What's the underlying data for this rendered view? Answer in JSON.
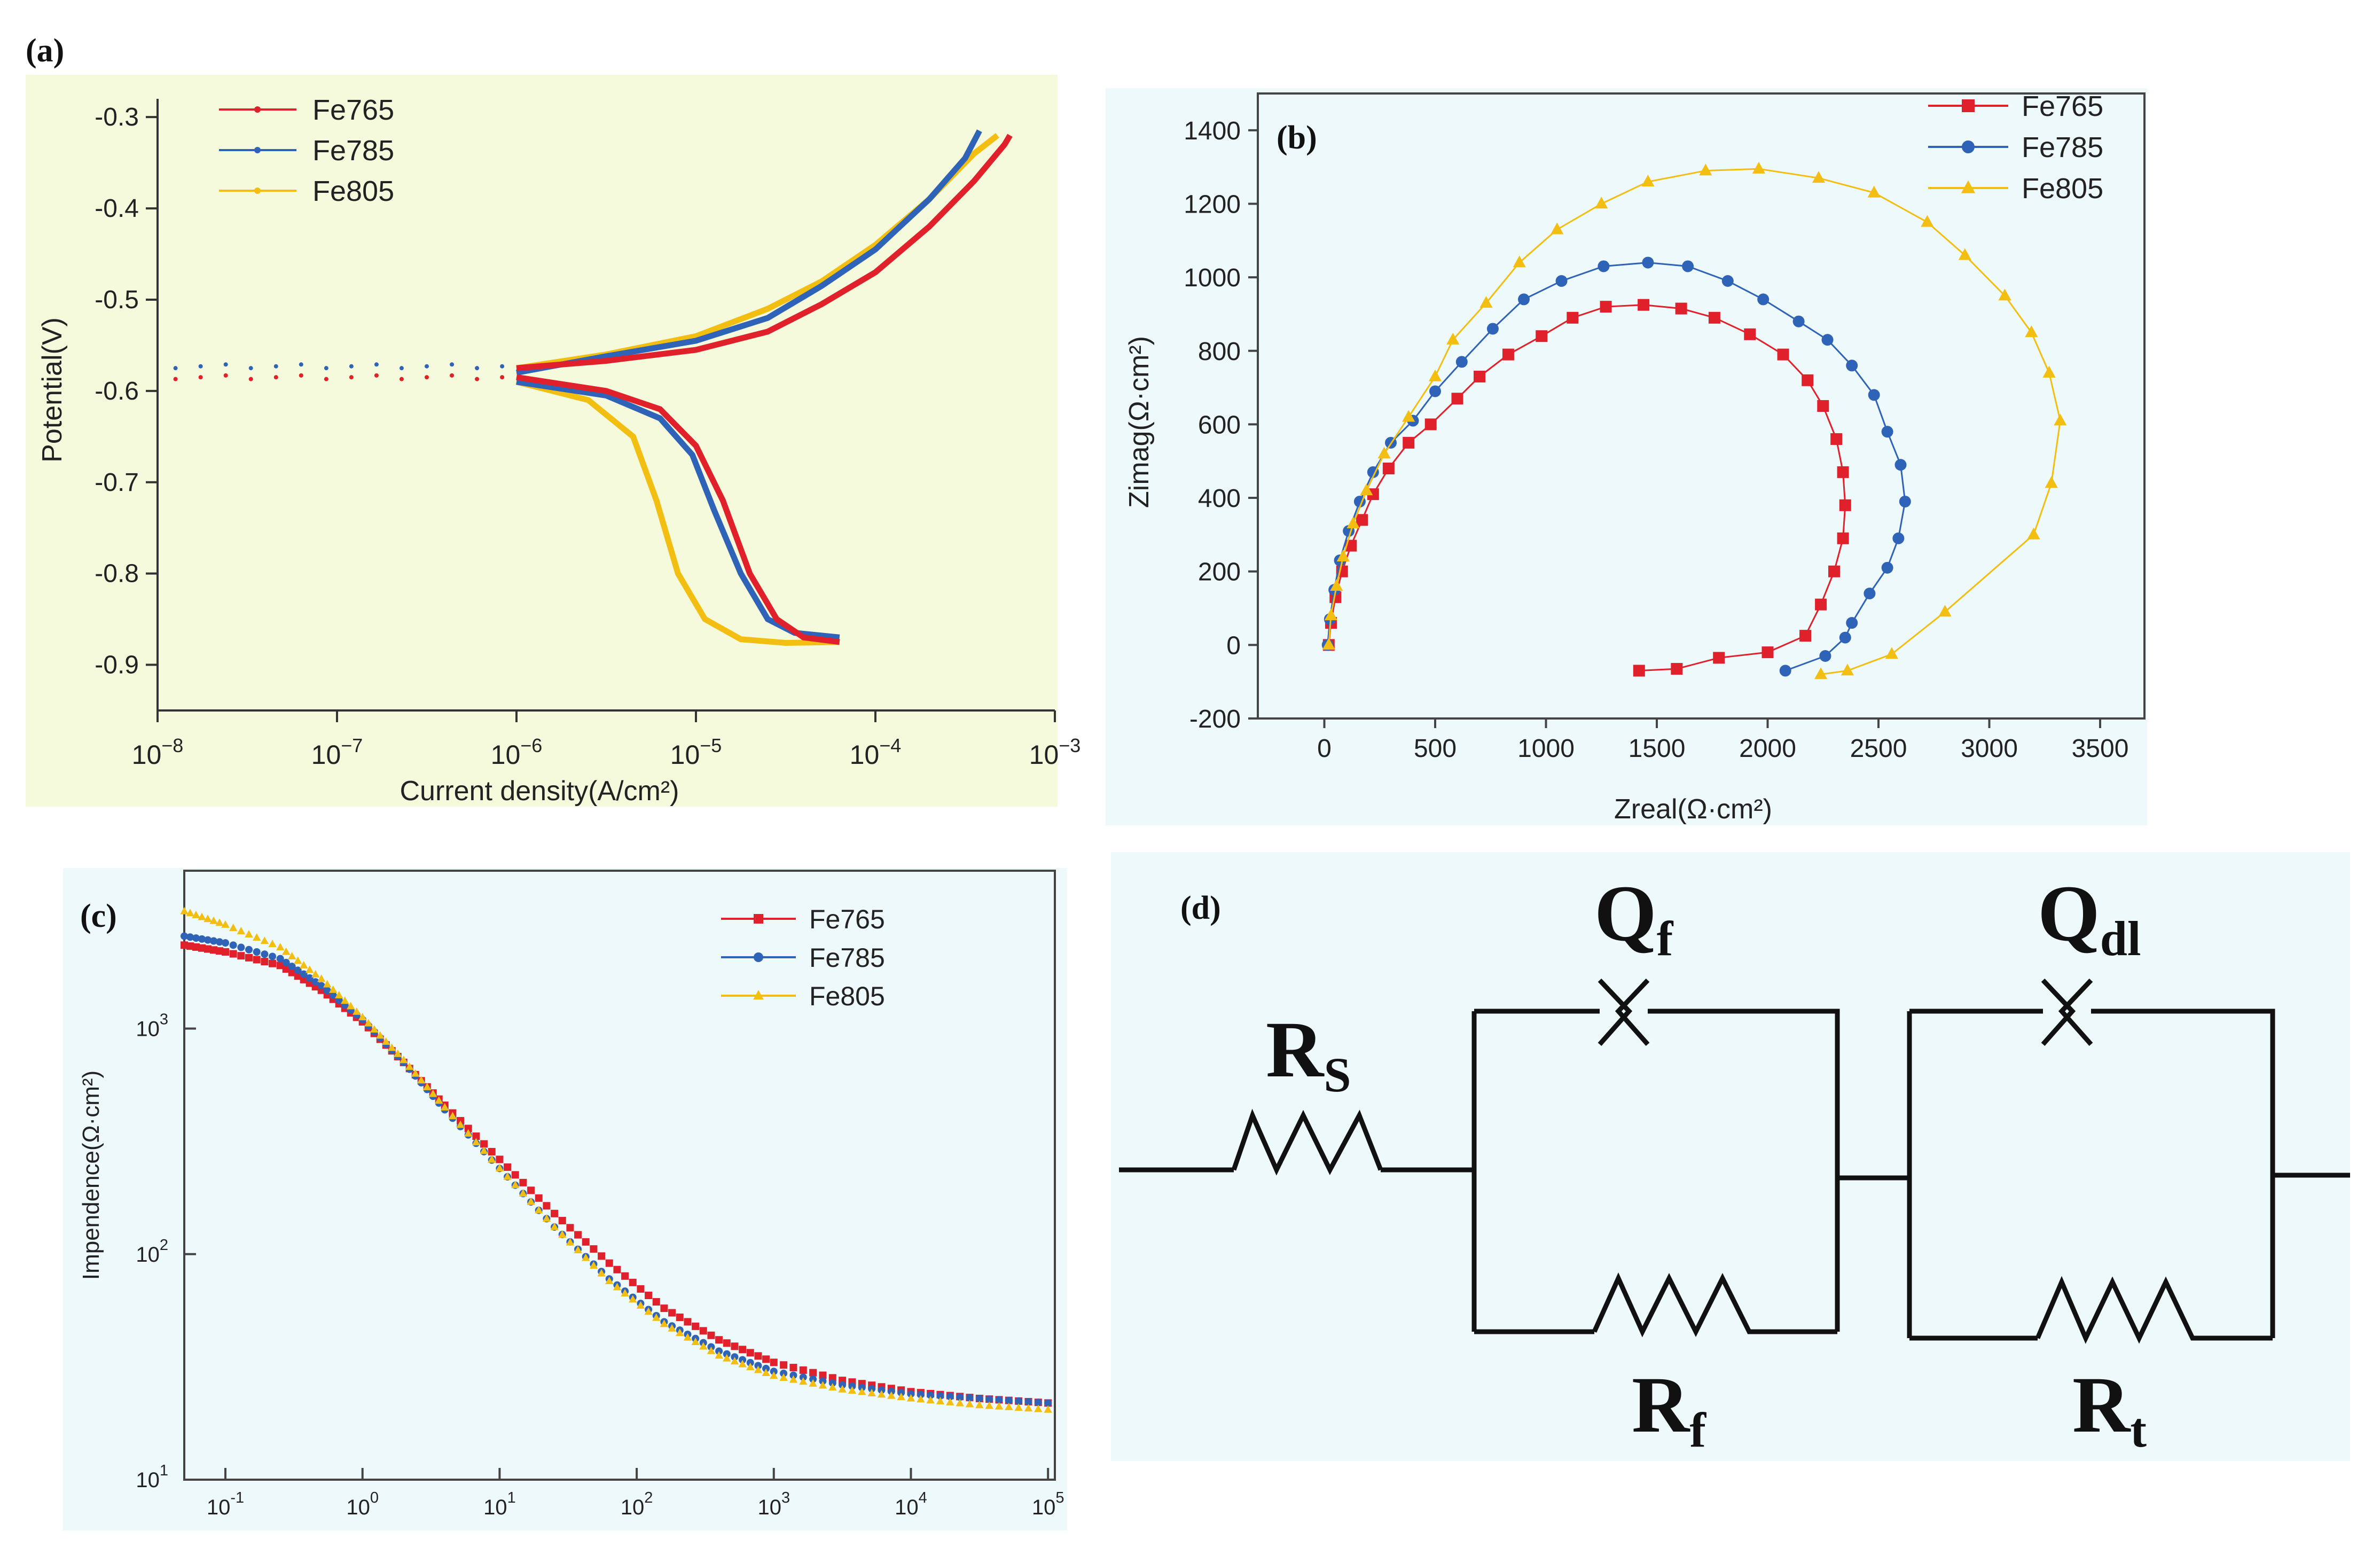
{
  "colors": {
    "Fe765": "#e0202a",
    "Fe785": "#2f63b8",
    "Fe805": "#f3be12",
    "panel_a_bg": "#f5fadc",
    "panel_b_bg": "#eef9fb",
    "panel_c_bg": "#eef9fb",
    "panel_d_bg": "#eef9fb"
  },
  "chart_data": [
    {
      "type": "line",
      "panel_label": "(a)",
      "xlabel": "Current density(A/cm²)",
      "ylabel": "Potential(V)",
      "x_scale": "log",
      "xlim_exp": [
        -8,
        -3
      ],
      "ylim": [
        -0.95,
        -0.28
      ],
      "x_tick_base": "10",
      "x_ticks": [
        {
          "exp": "−8",
          "v": -8
        },
        {
          "exp": "−7",
          "v": -7
        },
        {
          "exp": "−6",
          "v": -6
        },
        {
          "exp": "−5",
          "v": -5
        },
        {
          "exp": "−4",
          "v": -4
        },
        {
          "exp": "−3",
          "v": -3
        }
      ],
      "y_ticks": [
        "-0.3",
        "-0.4",
        "-0.5",
        "-0.6",
        "-0.7",
        "-0.8",
        "-0.9"
      ],
      "legend": "top-left",
      "series": [
        {
          "name": "Fe765",
          "points_exp_E": [
            [
              -6.0,
              -0.575
            ],
            [
              -5.5,
              -0.567
            ],
            [
              -5.0,
              -0.555
            ],
            [
              -4.6,
              -0.535
            ],
            [
              -4.3,
              -0.505
            ],
            [
              -4.0,
              -0.47
            ],
            [
              -3.7,
              -0.42
            ],
            [
              -3.45,
              -0.37
            ],
            [
              -3.28,
              -0.33
            ],
            [
              -3.25,
              -0.32
            ]
          ],
          "cathodic_exp_E": [
            [
              -6.0,
              -0.585
            ],
            [
              -5.5,
              -0.6
            ],
            [
              -5.2,
              -0.62
            ],
            [
              -5.0,
              -0.66
            ],
            [
              -4.85,
              -0.72
            ],
            [
              -4.7,
              -0.8
            ],
            [
              -4.55,
              -0.85
            ],
            [
              -4.4,
              -0.87
            ],
            [
              -4.2,
              -0.875
            ]
          ]
        },
        {
          "name": "Fe785",
          "points_exp_E": [
            [
              -6.0,
              -0.58
            ],
            [
              -5.5,
              -0.562
            ],
            [
              -5.0,
              -0.545
            ],
            [
              -4.6,
              -0.52
            ],
            [
              -4.3,
              -0.485
            ],
            [
              -4.0,
              -0.445
            ],
            [
              -3.7,
              -0.39
            ],
            [
              -3.5,
              -0.345
            ],
            [
              -3.42,
              -0.315
            ]
          ],
          "cathodic_exp_E": [
            [
              -6.0,
              -0.59
            ],
            [
              -5.5,
              -0.605
            ],
            [
              -5.2,
              -0.63
            ],
            [
              -5.02,
              -0.67
            ],
            [
              -4.9,
              -0.73
            ],
            [
              -4.75,
              -0.8
            ],
            [
              -4.6,
              -0.85
            ],
            [
              -4.45,
              -0.865
            ],
            [
              -4.2,
              -0.87
            ]
          ]
        },
        {
          "name": "Fe805",
          "points_exp_E": [
            [
              -6.0,
              -0.575
            ],
            [
              -5.5,
              -0.56
            ],
            [
              -5.0,
              -0.54
            ],
            [
              -4.6,
              -0.51
            ],
            [
              -4.3,
              -0.48
            ],
            [
              -4.0,
              -0.44
            ],
            [
              -3.7,
              -0.39
            ],
            [
              -3.45,
              -0.34
            ],
            [
              -3.32,
              -0.32
            ]
          ],
          "cathodic_exp_E": [
            [
              -6.0,
              -0.59
            ],
            [
              -5.6,
              -0.61
            ],
            [
              -5.35,
              -0.65
            ],
            [
              -5.22,
              -0.72
            ],
            [
              -5.1,
              -0.8
            ],
            [
              -4.95,
              -0.85
            ],
            [
              -4.75,
              -0.872
            ],
            [
              -4.5,
              -0.876
            ],
            [
              -4.2,
              -0.875
            ]
          ]
        }
      ]
    },
    {
      "type": "scatter",
      "panel_label": "(b)",
      "xlabel": "Zreal(Ω·cm²)",
      "ylabel": "Zimag(Ω·cm²)",
      "xlim": [
        -300,
        3700
      ],
      "ylim": [
        -200,
        1500
      ],
      "x_ticks": [
        "0",
        "500",
        "1000",
        "1500",
        "2000",
        "2500",
        "3000",
        "3500"
      ],
      "y_ticks": [
        "-200",
        "0",
        "200",
        "400",
        "600",
        "800",
        "1000",
        "1200",
        "1400"
      ],
      "legend": "top-right",
      "series": [
        {
          "name": "Fe765",
          "marker": "square",
          "points": [
            [
              20,
              0
            ],
            [
              30,
              60
            ],
            [
              50,
              130
            ],
            [
              80,
              200
            ],
            [
              120,
              270
            ],
            [
              170,
              340
            ],
            [
              220,
              410
            ],
            [
              290,
              480
            ],
            [
              380,
              550
            ],
            [
              480,
              600
            ],
            [
              600,
              670
            ],
            [
              700,
              730
            ],
            [
              830,
              790
            ],
            [
              980,
              840
            ],
            [
              1120,
              890
            ],
            [
              1270,
              920
            ],
            [
              1440,
              925
            ],
            [
              1610,
              915
            ],
            [
              1760,
              890
            ],
            [
              1920,
              845
            ],
            [
              2070,
              790
            ],
            [
              2180,
              720
            ],
            [
              2250,
              650
            ],
            [
              2310,
              560
            ],
            [
              2340,
              470
            ],
            [
              2350,
              380
            ],
            [
              2340,
              290
            ],
            [
              2300,
              200
            ],
            [
              2240,
              110
            ],
            [
              2170,
              25
            ],
            [
              2000,
              -20
            ],
            [
              1780,
              -35
            ],
            [
              1590,
              -65
            ],
            [
              1420,
              -70
            ]
          ]
        },
        {
          "name": "Fe785",
          "marker": "circle",
          "points": [
            [
              15,
              0
            ],
            [
              25,
              70
            ],
            [
              45,
              150
            ],
            [
              70,
              230
            ],
            [
              110,
              310
            ],
            [
              160,
              390
            ],
            [
              220,
              470
            ],
            [
              300,
              550
            ],
            [
              400,
              610
            ],
            [
              500,
              690
            ],
            [
              620,
              770
            ],
            [
              760,
              860
            ],
            [
              900,
              940
            ],
            [
              1070,
              990
            ],
            [
              1260,
              1030
            ],
            [
              1460,
              1040
            ],
            [
              1640,
              1030
            ],
            [
              1820,
              990
            ],
            [
              1980,
              940
            ],
            [
              2140,
              880
            ],
            [
              2270,
              830
            ],
            [
              2380,
              760
            ],
            [
              2480,
              680
            ],
            [
              2540,
              580
            ],
            [
              2600,
              490
            ],
            [
              2620,
              390
            ],
            [
              2590,
              290
            ],
            [
              2540,
              210
            ],
            [
              2460,
              140
            ],
            [
              2380,
              60
            ],
            [
              2350,
              20
            ],
            [
              2260,
              -30
            ],
            [
              2080,
              -70
            ]
          ]
        },
        {
          "name": "Fe805",
          "marker": "triangle",
          "points": [
            [
              20,
              0
            ],
            [
              30,
              80
            ],
            [
              55,
              160
            ],
            [
              85,
              240
            ],
            [
              130,
              330
            ],
            [
              190,
              420
            ],
            [
              270,
              520
            ],
            [
              380,
              620
            ],
            [
              500,
              730
            ],
            [
              580,
              830
            ],
            [
              730,
              930
            ],
            [
              880,
              1040
            ],
            [
              1050,
              1130
            ],
            [
              1250,
              1200
            ],
            [
              1460,
              1260
            ],
            [
              1720,
              1290
            ],
            [
              1960,
              1295
            ],
            [
              2230,
              1270
            ],
            [
              2480,
              1230
            ],
            [
              2720,
              1150
            ],
            [
              2890,
              1060
            ],
            [
              3070,
              950
            ],
            [
              3190,
              850
            ],
            [
              3270,
              740
            ],
            [
              3320,
              610
            ],
            [
              3280,
              440
            ],
            [
              3200,
              300
            ],
            [
              2800,
              90
            ],
            [
              2560,
              -25
            ],
            [
              2360,
              -70
            ],
            [
              2240,
              -80
            ]
          ]
        }
      ]
    },
    {
      "type": "scatter",
      "panel_label": "(c)",
      "xlabel": "",
      "ylabel": "Impendence(Ω·cm²)",
      "x_scale": "log",
      "y_scale": "log",
      "xlim_exp": [
        -1.3,
        5.05
      ],
      "ylim_exp": [
        1,
        3.7
      ],
      "x_tick_base": "10",
      "x_ticks": [
        {
          "exp": "-1",
          "v": -1
        },
        {
          "exp": "0",
          "v": 0
        },
        {
          "exp": "1",
          "v": 1
        },
        {
          "exp": "2",
          "v": 2
        },
        {
          "exp": "3",
          "v": 3
        },
        {
          "exp": "4",
          "v": 4
        },
        {
          "exp": "5",
          "v": 5
        }
      ],
      "y_ticks": [
        {
          "exp": "1",
          "v": 1
        },
        {
          "exp": "2",
          "v": 2
        },
        {
          "exp": "3",
          "v": 3
        }
      ],
      "legend": "top-right",
      "series": [
        {
          "name": "Fe765",
          "marker": "square",
          "logf_logZ": [
            [
              -1.3,
              3.37
            ],
            [
              -1.0,
              3.34
            ],
            [
              -0.6,
              3.28
            ],
            [
              -0.3,
              3.17
            ],
            [
              0.0,
              3.03
            ],
            [
              0.3,
              2.85
            ],
            [
              0.6,
              2.66
            ],
            [
              1.0,
              2.42
            ],
            [
              1.4,
              2.18
            ],
            [
              1.8,
              1.96
            ],
            [
              2.2,
              1.76
            ],
            [
              2.6,
              1.62
            ],
            [
              3.0,
              1.52
            ],
            [
              3.5,
              1.44
            ],
            [
              4.0,
              1.39
            ],
            [
              4.5,
              1.36
            ],
            [
              5.0,
              1.34
            ]
          ]
        },
        {
          "name": "Fe785",
          "marker": "circle",
          "logf_logZ": [
            [
              -1.3,
              3.41
            ],
            [
              -1.0,
              3.38
            ],
            [
              -0.6,
              3.31
            ],
            [
              -0.3,
              3.19
            ],
            [
              0.0,
              3.04
            ],
            [
              0.3,
              2.85
            ],
            [
              0.6,
              2.64
            ],
            [
              1.0,
              2.38
            ],
            [
              1.4,
              2.12
            ],
            [
              1.8,
              1.89
            ],
            [
              2.2,
              1.7
            ],
            [
              2.6,
              1.57
            ],
            [
              3.0,
              1.48
            ],
            [
              3.5,
              1.42
            ],
            [
              4.0,
              1.38
            ],
            [
              4.5,
              1.36
            ],
            [
              5.0,
              1.34
            ]
          ]
        },
        {
          "name": "Fe805",
          "marker": "triangle",
          "logf_logZ": [
            [
              -1.3,
              3.52
            ],
            [
              -1.0,
              3.46
            ],
            [
              -0.6,
              3.36
            ],
            [
              -0.3,
              3.22
            ],
            [
              0.0,
              3.05
            ],
            [
              0.3,
              2.86
            ],
            [
              0.6,
              2.65
            ],
            [
              1.0,
              2.38
            ],
            [
              1.4,
              2.12
            ],
            [
              1.8,
              1.88
            ],
            [
              2.2,
              1.69
            ],
            [
              2.6,
              1.55
            ],
            [
              3.0,
              1.46
            ],
            [
              3.5,
              1.4
            ],
            [
              4.0,
              1.36
            ],
            [
              4.5,
              1.33
            ],
            [
              5.0,
              1.31
            ]
          ]
        }
      ]
    }
  ],
  "circuit": {
    "panel_label": "(d)",
    "labels": {
      "Rs": "R",
      "Rs_sub": "S",
      "Qf": "Q",
      "Qf_sub": "f",
      "Qdl": "Q",
      "Qdl_sub": "dl",
      "Rf": "R",
      "Rf_sub": "f",
      "Rt": "R",
      "Rt_sub": "t"
    }
  }
}
